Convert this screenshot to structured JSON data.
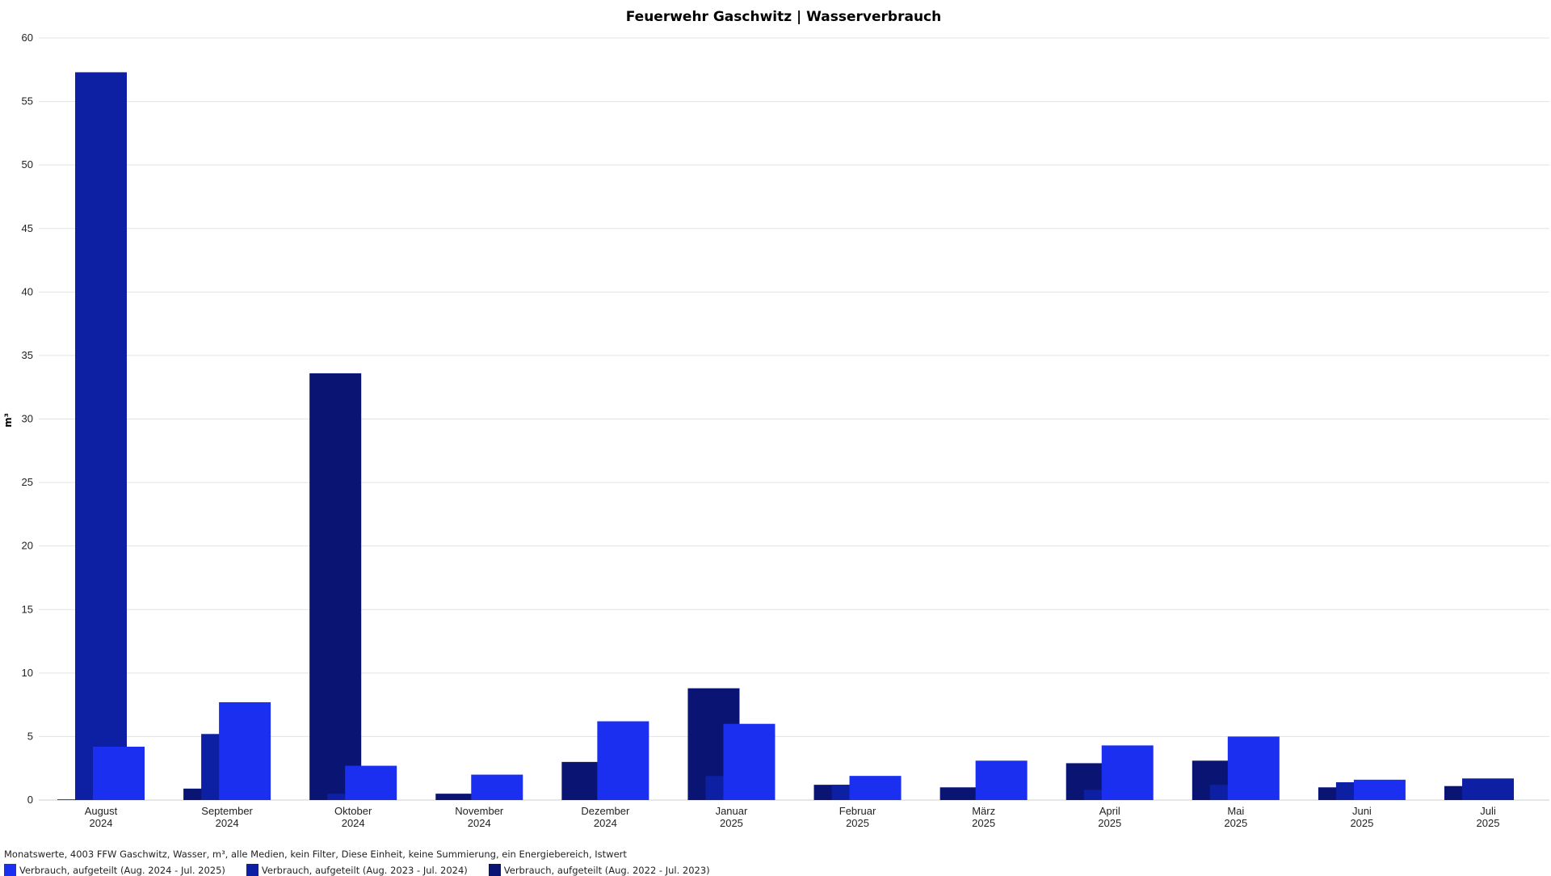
{
  "chart_data": {
    "type": "bar",
    "title": "Feuerwehr Gaschwitz | Wasserverbrauch",
    "ylabel": "m³",
    "ylim": [
      0,
      60
    ],
    "yticks": [
      0,
      5,
      10,
      15,
      20,
      25,
      30,
      35,
      40,
      45,
      50,
      55,
      60
    ],
    "grid": true,
    "categories": [
      [
        "August",
        "2024"
      ],
      [
        "September",
        "2024"
      ],
      [
        "Oktober",
        "2024"
      ],
      [
        "November",
        "2024"
      ],
      [
        "Dezember",
        "2024"
      ],
      [
        "Januar",
        "2025"
      ],
      [
        "Februar",
        "2025"
      ],
      [
        "März",
        "2025"
      ],
      [
        "April",
        "2025"
      ],
      [
        "Mai",
        "2025"
      ],
      [
        "Juni",
        "2025"
      ],
      [
        "Juli",
        "2025"
      ]
    ],
    "series": [
      {
        "name": "Verbrauch, aufgeteilt (Aug. 2022 - Jul. 2023)",
        "color": "#0a1472",
        "values": [
          0.05,
          0.9,
          33.6,
          0.5,
          3.0,
          8.8,
          1.2,
          1.0,
          2.9,
          3.1,
          1.0,
          1.1
        ]
      },
      {
        "name": "Verbrauch, aufgeteilt (Aug. 2023 - Jul. 2024)",
        "color": "#0d1fa3",
        "values": [
          57.3,
          5.2,
          0.5,
          0,
          0,
          1.9,
          1.2,
          0,
          0.8,
          1.2,
          1.4,
          1.7
        ]
      },
      {
        "name": "Verbrauch, aufgeteilt (Aug. 2024 - Jul. 2025)",
        "color": "#1a2ff0",
        "values": [
          4.2,
          7.7,
          2.7,
          2.0,
          6.2,
          6.0,
          1.9,
          3.1,
          4.3,
          5.0,
          1.6,
          0
        ]
      }
    ],
    "legend_position": "bottom-left",
    "legend_order": [
      2,
      1,
      0
    ]
  },
  "footnote": "Monatswerte, 4003 FFW Gaschwitz, Wasser, m³, alle Medien, kein Filter, Diese Einheit, keine Summierung, ein Energiebereich, Istwert"
}
